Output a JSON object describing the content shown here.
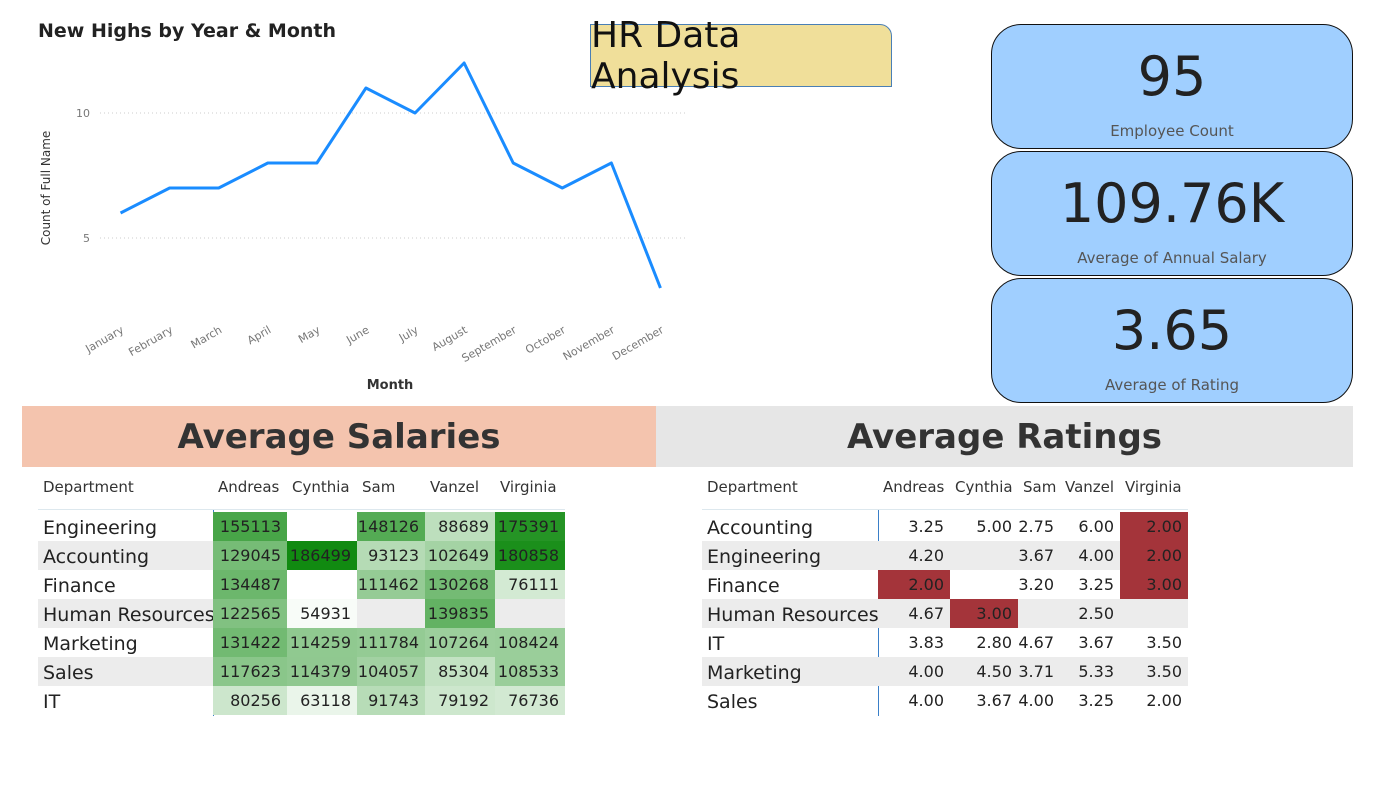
{
  "chart_data": {
    "type": "line",
    "title": "New Highs by Year & Month",
    "x_label": "Month",
    "y_label": "Count of Full Name",
    "categories": [
      "January",
      "February",
      "March",
      "April",
      "May",
      "June",
      "July",
      "August",
      "September",
      "October",
      "November",
      "December"
    ],
    "values": [
      6,
      7,
      7,
      8,
      8,
      11,
      10,
      12,
      8,
      7,
      8,
      3
    ],
    "color": "#1a8cff",
    "ylim": [
      2,
      12
    ],
    "yticks": [
      5,
      10
    ],
    "grid": true
  },
  "header": {
    "title": "HR Data Analysis"
  },
  "cards": [
    {
      "value": 95,
      "label": "Employee Count"
    },
    {
      "value": "109.76K",
      "label": "Average of Annual Salary"
    },
    {
      "value": 3.65,
      "label": "Average of Rating"
    }
  ],
  "salaries": {
    "title": "Average Salaries",
    "color": "#118a11",
    "columns": [
      "Department",
      "Andreas",
      "Cynthia",
      "Sam",
      "Vanzel",
      "Virginia"
    ],
    "rows": [
      {
        "department": "Engineering",
        "values": [
          155113,
          null,
          148126,
          88689,
          175391
        ]
      },
      {
        "department": "Accounting",
        "values": [
          129045,
          186499,
          93123,
          102649,
          180858
        ]
      },
      {
        "department": "Finance",
        "values": [
          134487,
          null,
          111462,
          130268,
          76111
        ]
      },
      {
        "department": "Human Resources",
        "values": [
          122565,
          54931,
          null,
          139835,
          null
        ]
      },
      {
        "department": "Marketing",
        "values": [
          131422,
          114259,
          111784,
          107264,
          108424
        ]
      },
      {
        "department": "Sales",
        "values": [
          117623,
          114379,
          104057,
          85304,
          108533
        ]
      },
      {
        "department": "IT",
        "values": [
          80256,
          63118,
          91743,
          79192,
          76736
        ]
      }
    ]
  },
  "ratings": {
    "title": "Average Ratings",
    "highlight_color": "#a4343a",
    "columns": [
      "Department",
      "Andreas",
      "Cynthia",
      "Sam",
      "Vanzel",
      "Virginia"
    ],
    "rows": [
      {
        "department": "Accounting",
        "values": [
          "3.25",
          "5.00",
          "2.75",
          "6.00",
          "2.00"
        ],
        "highlight": [
          false,
          false,
          false,
          false,
          true
        ]
      },
      {
        "department": "Engineering",
        "values": [
          "4.20",
          null,
          "3.67",
          "4.00",
          "2.00"
        ],
        "highlight": [
          false,
          false,
          false,
          false,
          true
        ]
      },
      {
        "department": "Finance",
        "values": [
          "2.00",
          null,
          "3.20",
          "3.25",
          "3.00"
        ],
        "highlight": [
          true,
          false,
          false,
          false,
          true
        ]
      },
      {
        "department": "Human Resources",
        "values": [
          "4.67",
          "3.00",
          null,
          "2.50",
          null
        ],
        "highlight": [
          false,
          true,
          false,
          false,
          false
        ]
      },
      {
        "department": "IT",
        "values": [
          "3.83",
          "2.80",
          "4.67",
          "3.67",
          "3.50"
        ],
        "highlight": [
          false,
          false,
          false,
          false,
          false
        ]
      },
      {
        "department": "Marketing",
        "values": [
          "4.00",
          "4.50",
          "3.71",
          "5.33",
          "3.50"
        ],
        "highlight": [
          false,
          false,
          false,
          false,
          false
        ]
      },
      {
        "department": "Sales",
        "values": [
          "4.00",
          "3.67",
          "4.00",
          "3.25",
          "2.00"
        ],
        "highlight": [
          false,
          false,
          false,
          false,
          false
        ]
      }
    ]
  }
}
